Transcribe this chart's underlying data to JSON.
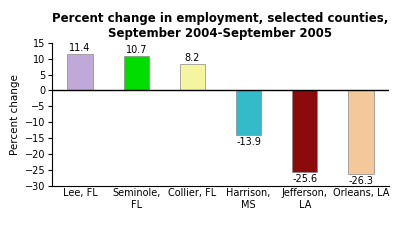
{
  "title": "Percent change in employment, selected counties,\nSeptember 2004-September 2005",
  "ylabel": "Percent change",
  "categories": [
    "Lee, FL",
    "Seminole,\nFL",
    "Collier, FL",
    "Harrison,\nMS",
    "Jefferson,\nLA",
    "Orleans, LA"
  ],
  "values": [
    11.4,
    10.7,
    8.2,
    -13.9,
    -25.6,
    -26.3
  ],
  "bar_colors": [
    "#c0a8d8",
    "#00dd00",
    "#f5f5a0",
    "#33bbcc",
    "#8b0a0a",
    "#f5c89a"
  ],
  "data_labels": [
    "11.4",
    "10.7",
    "8.2",
    "-13.9",
    "-25.6",
    "-26.3"
  ],
  "ylim": [
    -30,
    15
  ],
  "yticks": [
    -30,
    -25,
    -20,
    -15,
    -10,
    -5,
    0,
    5,
    10,
    15
  ],
  "background_color": "#ffffff",
  "title_fontsize": 8.5,
  "ylabel_fontsize": 7.5,
  "tick_fontsize": 7,
  "label_fontsize": 7,
  "bar_width": 0.45,
  "edgecolor": "#888888"
}
